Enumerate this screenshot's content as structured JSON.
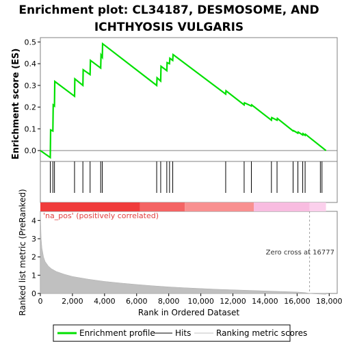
{
  "chart_data": {
    "type": "line",
    "title_line1": "Enrichment plot: CL34187, DESMOSOME, AND",
    "title_line2": "ICHTHYOSIS VULGARIS",
    "es_panel": {
      "ylabel": "Enrichment score (ES)",
      "ylim": [
        -0.05,
        0.52
      ],
      "yticks": [
        0.0,
        0.1,
        0.2,
        0.3,
        0.4,
        0.5
      ],
      "ytick_labels": [
        "0.0",
        "0.1",
        "0.2",
        "0.3",
        "0.4",
        "0.5"
      ],
      "series": [
        {
          "name": "Enrichment profile",
          "color": "#00e000",
          "x": [
            0,
            620,
            640,
            780,
            800,
            880,
            900,
            2130,
            2150,
            2650,
            2670,
            3100,
            3120,
            3760,
            3780,
            3860,
            3880,
            7250,
            7270,
            7500,
            7520,
            7880,
            7900,
            8050,
            8070,
            8250,
            8270,
            11550,
            11570,
            12700,
            12720,
            13150,
            13170,
            14400,
            14420,
            14750,
            14770,
            15750,
            15770,
            16050,
            16070,
            16350,
            16370,
            16500,
            16520,
            17800
          ],
          "y": [
            0.0,
            -0.032,
            0.095,
            0.09,
            0.21,
            0.205,
            0.318,
            0.25,
            0.33,
            0.3,
            0.372,
            0.35,
            0.415,
            0.38,
            0.44,
            0.43,
            0.492,
            0.3,
            0.335,
            0.32,
            0.388,
            0.368,
            0.405,
            0.4,
            0.425,
            0.415,
            0.442,
            0.26,
            0.275,
            0.21,
            0.22,
            0.205,
            0.21,
            0.14,
            0.152,
            0.14,
            0.148,
            0.09,
            0.092,
            0.08,
            0.085,
            0.072,
            0.078,
            0.07,
            0.075,
            0.0
          ]
        }
      ]
    },
    "hits": {
      "name": "Hits",
      "x": [
        620,
        780,
        880,
        2130,
        2650,
        3100,
        3760,
        3860,
        7250,
        7500,
        7880,
        8050,
        8250,
        11550,
        12700,
        13150,
        14400,
        14750,
        15750,
        16050,
        16350,
        16500,
        17450,
        17550
      ]
    },
    "rank_metric": {
      "name": "Ranking metric scores",
      "ylabel": "Ranked list metric (PreRanked)",
      "xlabel": "Rank in Ordered Dataset",
      "ylim": [
        0,
        4.5
      ],
      "yticks": [
        0,
        1,
        2,
        3,
        4
      ],
      "ytick_labels": [
        "0",
        "1",
        "2",
        "3",
        "4"
      ],
      "x": [
        0,
        50,
        100,
        200,
        300,
        500,
        700,
        1000,
        1500,
        2000,
        3000,
        4000,
        5000,
        6000,
        7000,
        8000,
        9000,
        10000,
        11000,
        12000,
        13000,
        14000,
        15000,
        16000,
        16500,
        16777,
        17000,
        17800
      ],
      "y": [
        4.5,
        3.0,
        2.5,
        2.0,
        1.75,
        1.5,
        1.35,
        1.2,
        1.05,
        0.93,
        0.78,
        0.66,
        0.57,
        0.49,
        0.42,
        0.36,
        0.31,
        0.27,
        0.23,
        0.2,
        0.17,
        0.14,
        0.11,
        0.08,
        0.05,
        0.0,
        -0.02,
        -0.05
      ],
      "zero_cross_label": "Zero cross at 16777",
      "zero_cross": 16777,
      "pos_label": "'na_pos' (positively correlated)"
    },
    "xaxis": {
      "xlim": [
        0,
        18500
      ],
      "xticks": [
        0,
        2000,
        4000,
        6000,
        8000,
        10000,
        12000,
        14000,
        16000,
        18000
      ],
      "xtick_labels": [
        "0",
        "2,000",
        "4,000",
        "6,000",
        "8,000",
        "10,000",
        "12,000",
        "14,000",
        "16,000",
        "18,000"
      ]
    },
    "gradient_bar": {
      "segments": [
        {
          "from": 0,
          "to": 6200,
          "color": "#f03c3c"
        },
        {
          "from": 6200,
          "to": 9000,
          "color": "#f46464"
        },
        {
          "from": 9000,
          "to": 13300,
          "color": "#f89090"
        },
        {
          "from": 13300,
          "to": 16777,
          "color": "#f8bce0"
        },
        {
          "from": 16777,
          "to": 17800,
          "color": "#fbd0ec"
        }
      ]
    },
    "legend": {
      "items": [
        {
          "label": "Enrichment profile",
          "color": "#00e000"
        },
        {
          "label": "Hits",
          "color": "#000000"
        },
        {
          "label": "Ranking metric scores",
          "color": "#c0c0c0"
        }
      ]
    }
  }
}
